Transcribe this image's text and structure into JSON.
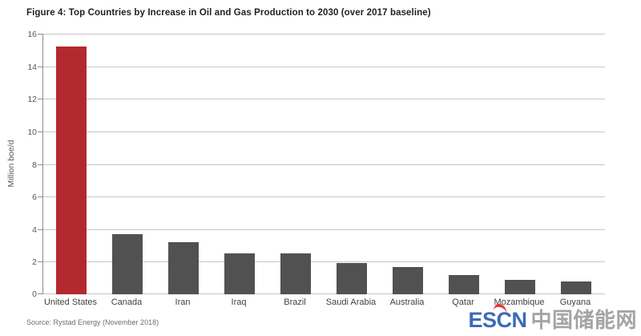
{
  "title": "Figure 4: Top Countries by Increase in Oil and Gas Production to 2030 (over 2017 baseline)",
  "source": "Source: Rystad Energy (November 2018)",
  "watermark": {
    "latin": "ESCN",
    "chinese": "中国储能网",
    "blue": "#3a6db4",
    "red": "#e13c3e",
    "gray": "#a5a3a4"
  },
  "colors": {
    "bar": "#515151",
    "highlight": "#b2292e",
    "grid": "#c6c6c6",
    "axis": "#8c8c8c",
    "tick_label": "#58595b",
    "x_label": "#414042"
  },
  "chart_data": {
    "type": "bar",
    "title": "Figure 4: Top Countries by Increase in Oil and Gas Production to 2030 (over 2017 baseline)",
    "categories": [
      "United States",
      "Canada",
      "Iran",
      "Iraq",
      "Brazil",
      "Saudi Arabia",
      "Australia",
      "Qatar",
      "Mozambique",
      "Guyana"
    ],
    "values": [
      15.2,
      3.7,
      3.2,
      2.5,
      2.5,
      1.9,
      1.7,
      1.2,
      0.9,
      0.8
    ],
    "highlight_category": "United States",
    "bar_color": "#515151",
    "highlight_color": "#b2292e",
    "xlabel": "",
    "ylabel": "Million boe/d",
    "yticks": [
      0,
      2,
      4,
      6,
      8,
      10,
      12,
      14,
      16
    ],
    "ylim": [
      0,
      16
    ],
    "ytick_step": 2,
    "grid": true,
    "legend": false
  }
}
